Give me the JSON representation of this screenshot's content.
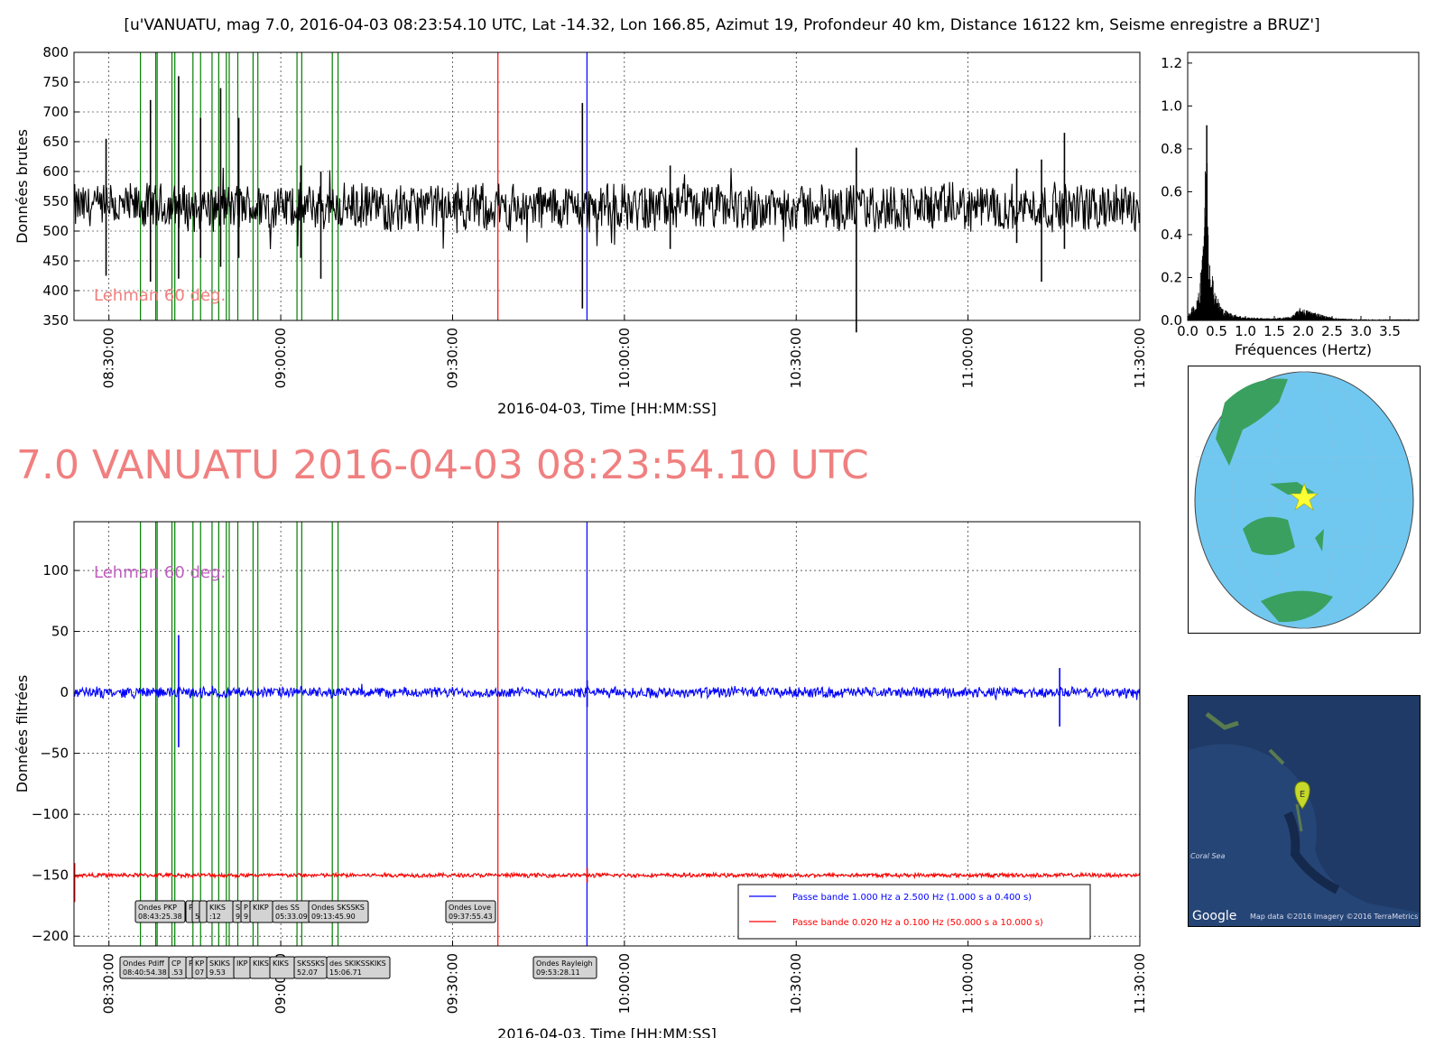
{
  "suptitle": "[u'VANUATU, mag 7.0, 2016-04-03 08:23:54.10 UTC, Lat -14.32, Lon 166.85, Azimut  19, Profondeur 40 km, Distance 16122 km, Seisme enregistre a BRUZ']",
  "big_title": "7.0 VANUATU 2016-04-03 08:23:54.10 UTC",
  "annotation_text": "Lehman 60 deg.",
  "colors": {
    "raw": "#000000",
    "phase": "#008000",
    "love": "#ff0000",
    "rayleigh": "#0000ff",
    "band1": "#0000ff",
    "band2": "#ff0000",
    "title": "#f08080",
    "lehman_top": "#f08080",
    "lehman_bottom": "#c060c0"
  },
  "map_credits": {
    "google": "Google",
    "sea": "Coral Sea",
    "marker": "E",
    "data": "Map data ©2016  Imagery ©2016 TerraMetrics"
  },
  "chart_data": [
    {
      "id": "raw",
      "type": "line",
      "xlabel": "2016-04-03, Time [HH:MM:SS]",
      "ylabel": "Données brutes",
      "ylim": [
        350,
        800
      ],
      "yticks": [
        350,
        400,
        450,
        500,
        550,
        600,
        650,
        700,
        750,
        800
      ],
      "xlim": [
        "08:23:54",
        "11:30:00"
      ],
      "xticks": [
        "08:30:00",
        "09:00:00",
        "09:30:00",
        "10:00:00",
        "10:30:00",
        "11:00:00",
        "11:30:00"
      ],
      "grid": true,
      "series": [
        {
          "baseline": 540,
          "noise_amplitude": 45,
          "spikes": [
            {
              "t": "08:29:30",
              "high": 655,
              "low": 425
            },
            {
              "t": "08:37:15",
              "high": 720,
              "low": 415
            },
            {
              "t": "08:42:10",
              "high": 760,
              "low": 420
            },
            {
              "t": "08:46:00",
              "high": 690,
              "low": 455
            },
            {
              "t": "08:49:30",
              "high": 740,
              "low": 440
            },
            {
              "t": "08:52:40",
              "high": 690,
              "low": 455
            },
            {
              "t": "09:03:30",
              "high": 610,
              "low": 455
            },
            {
              "t": "09:07:00",
              "high": 600,
              "low": 420
            },
            {
              "t": "09:52:40",
              "high": 715,
              "low": 370
            },
            {
              "t": "10:08:00",
              "high": 610,
              "low": 470
            },
            {
              "t": "10:40:30",
              "high": 640,
              "low": 330
            },
            {
              "t": "11:08:30",
              "high": 605,
              "low": 480
            },
            {
              "t": "11:12:50",
              "high": 620,
              "low": 415
            },
            {
              "t": "11:16:50",
              "high": 665,
              "low": 470
            }
          ]
        }
      ]
    },
    {
      "id": "spectrum",
      "type": "line",
      "xlabel": "Fréquences (Hertz)",
      "ylim": [
        0,
        1.25
      ],
      "yticks": [
        0.0,
        0.2,
        0.4,
        0.6,
        0.8,
        1.0,
        1.2
      ],
      "xlim": [
        0,
        4.0
      ],
      "xticks": [
        0.0,
        0.5,
        1.0,
        1.5,
        2.0,
        2.5,
        3.0,
        3.5
      ],
      "series": [
        {
          "peak_freq": 0.33,
          "peak_value": 0.91,
          "points": [
            [
              0.0,
              0.02
            ],
            [
              0.05,
              0.05
            ],
            [
              0.1,
              0.07
            ],
            [
              0.15,
              0.09
            ],
            [
              0.2,
              0.14
            ],
            [
              0.25,
              0.4
            ],
            [
              0.3,
              0.7
            ],
            [
              0.33,
              0.91
            ],
            [
              0.36,
              0.45
            ],
            [
              0.4,
              0.3
            ],
            [
              0.45,
              0.18
            ],
            [
              0.5,
              0.12
            ],
            [
              0.6,
              0.06
            ],
            [
              0.7,
              0.04
            ],
            [
              0.8,
              0.03
            ],
            [
              1.0,
              0.015
            ],
            [
              1.5,
              0.01
            ],
            [
              1.8,
              0.02
            ],
            [
              1.95,
              0.06
            ],
            [
              2.05,
              0.05
            ],
            [
              2.2,
              0.04
            ],
            [
              2.4,
              0.02
            ],
            [
              2.6,
              0.01
            ],
            [
              3.0,
              0.005
            ],
            [
              3.5,
              0.005
            ],
            [
              4.0,
              0.005
            ]
          ]
        }
      ]
    },
    {
      "id": "filtered",
      "type": "line",
      "xlabel": "2016-04-03, Time [HH:MM:SS]",
      "ylabel": "Données filtrées",
      "ylim": [
        -208,
        140
      ],
      "yticks": [
        -200,
        -150,
        -100,
        -50,
        0,
        50,
        100
      ],
      "xlim": [
        "08:23:54",
        "11:30:00"
      ],
      "xticks": [
        "08:30:00",
        "09:00:00",
        "09:30:00",
        "10:00:00",
        "10:30:00",
        "11:00:00",
        "11:30:00"
      ],
      "grid": true,
      "legend_position": "lower-right",
      "series": [
        {
          "name": "Passe bande 1.000 Hz a 2.500 Hz (1.000 s a 0.400 s)",
          "baseline": 0,
          "noise_amplitude": 5,
          "events": [
            {
              "t": "08:42:10",
              "high": 47,
              "low": -45
            },
            {
              "t": "09:53:30",
              "high": 10,
              "low": -12
            },
            {
              "t": "11:16:00",
              "high": 20,
              "low": -28
            }
          ]
        },
        {
          "name": "Passe bande 0.020 Hz a 0.100 Hz (50.000 s a 10.000 s)",
          "baseline": -150,
          "noise_amplitude": 2,
          "events": [
            {
              "t": "08:24:00",
              "high": -140,
              "low": -172
            },
            {
              "t": "09:53:30",
              "high": -144,
              "low": -156
            }
          ]
        }
      ]
    }
  ],
  "phases": [
    {
      "t": "08:35:30"
    },
    {
      "t": "08:38:10"
    },
    {
      "t": "08:38:25"
    },
    {
      "t": "08:41:00"
    },
    {
      "t": "08:41:30"
    },
    {
      "t": "08:44:40"
    },
    {
      "t": "08:46:00"
    },
    {
      "t": "08:48:00"
    },
    {
      "t": "08:49:10"
    },
    {
      "t": "08:50:30"
    },
    {
      "t": "08:51:00"
    },
    {
      "t": "08:52:30"
    },
    {
      "t": "08:55:10"
    },
    {
      "t": "08:56:00"
    },
    {
      "t": "09:02:50"
    },
    {
      "t": "09:03:40"
    },
    {
      "t": "09:09:00"
    },
    {
      "t": "09:10:00"
    }
  ],
  "love_line": {
    "t": "09:37:55"
  },
  "rayleigh_line": {
    "t": "09:53:28"
  },
  "boxes_top": [
    {
      "lines": [
        "Ondes PKP",
        "08:43:25.38"
      ]
    },
    {
      "lines": [
        "P",
        ""
      ]
    },
    {
      "lines": [
        "",
        "5"
      ]
    },
    {
      "lines": [
        "",
        ""
      ]
    },
    {
      "lines": [
        "KIKS",
        ":12"
      ]
    },
    {
      "lines": [
        "S",
        "9"
      ]
    },
    {
      "lines": [
        "P",
        "9"
      ]
    },
    {
      "lines": [
        "KIKP",
        ""
      ]
    },
    {
      "lines": [
        "des SS",
        "05:33.09"
      ]
    },
    {
      "lines": [
        "Ondes SKSSKS",
        "09:13:45.90"
      ]
    },
    {
      "lines": [
        "Ondes Love",
        "09:37:55.43"
      ]
    }
  ],
  "boxes_bottom": [
    {
      "lines": [
        "Ondes Pdiff",
        "08:40:54.38"
      ]
    },
    {
      "lines": [
        "CP",
        ".53"
      ]
    },
    {
      "lines": [
        "P",
        ""
      ]
    },
    {
      "lines": [
        "KP",
        "07"
      ]
    },
    {
      "lines": [
        "SKIKS",
        "9.53"
      ]
    },
    {
      "lines": [
        "IKP",
        ""
      ]
    },
    {
      "lines": [
        "KIKS",
        ""
      ]
    },
    {
      "lines": [
        "KIKS",
        ""
      ]
    },
    {
      "lines": [
        "SKSSKS",
        "52.07"
      ]
    },
    {
      "lines": [
        "des SKIKSSKIKS",
        "15:06.71"
      ]
    },
    {
      "lines": [
        "Ondes Rayleigh",
        "09:53:28.11"
      ]
    }
  ]
}
